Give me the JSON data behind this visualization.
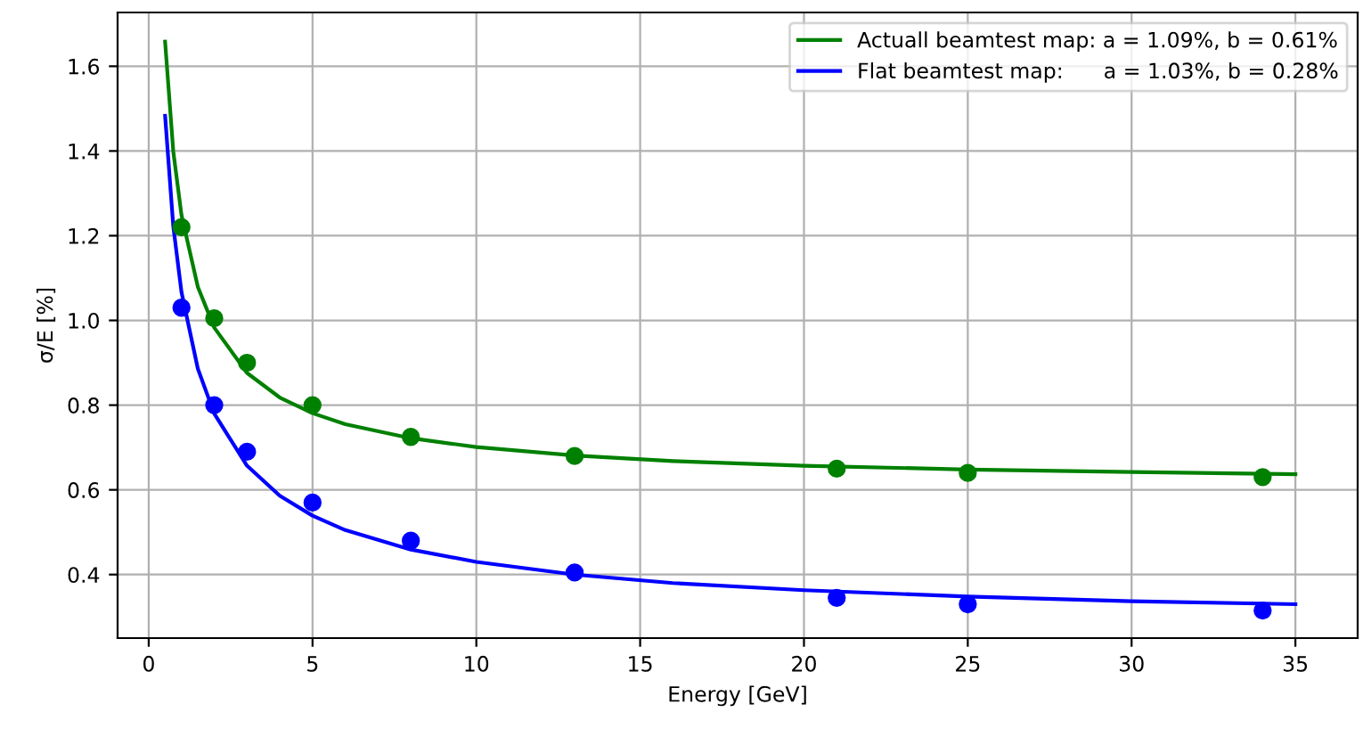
{
  "chart_data": {
    "type": "scatter",
    "xlabel": "Energy [GeV]",
    "ylabel": "σ/E [%]",
    "xlim": [
      -0.95,
      36.9
    ],
    "ylim": [
      0.25,
      1.727
    ],
    "xticks": [
      0,
      5,
      10,
      15,
      20,
      25,
      30,
      35
    ],
    "yticks": [
      0.4,
      0.6,
      0.8,
      {
        "value": 1,
        "label": "1.0"
      },
      1.2,
      1.4,
      1.6
    ],
    "grid": true,
    "legend": "top right",
    "series": [
      {
        "type": "line",
        "name": "Actuall beamtest map: a = 1.09%, b = 0.61%",
        "color": "#008000",
        "marker": "none",
        "line_style": "solid",
        "x": [
          0.5,
          0.75,
          1,
          1.5,
          2,
          3,
          4,
          5,
          6,
          8,
          10,
          13,
          16,
          20,
          25,
          30,
          35
        ],
        "values": [
          1.658,
          1.399,
          1.249,
          1.079,
          0.983,
          0.876,
          0.818,
          0.781,
          0.755,
          0.722,
          0.701,
          0.681,
          0.668,
          0.657,
          0.648,
          0.642,
          0.637
        ]
      },
      {
        "type": "line",
        "name": "Flat beamtest map:      a = 1.03%, b = 0.28%",
        "color": "#0000ff",
        "marker": "none",
        "line_style": "solid",
        "x": [
          0.5,
          0.75,
          1,
          1.5,
          2,
          3,
          4,
          5,
          6,
          8,
          10,
          13,
          16,
          20,
          25,
          30,
          35
        ],
        "values": [
          1.483,
          1.222,
          1.067,
          0.886,
          0.78,
          0.657,
          0.586,
          0.539,
          0.505,
          0.459,
          0.43,
          0.4,
          0.38,
          0.363,
          0.348,
          0.337,
          0.33
        ]
      },
      {
        "color": "#008000",
        "marker": "circle",
        "x": [
          1,
          2,
          3,
          5,
          8,
          13,
          21,
          25,
          34
        ],
        "values": [
          1.22,
          1.005,
          0.9,
          0.8,
          0.725,
          0.68,
          0.65,
          0.64,
          0.63
        ]
      },
      {
        "color": "#0000ff",
        "marker": "circle",
        "x": [
          1,
          2,
          3,
          5,
          8,
          13,
          21,
          25,
          34
        ],
        "values": [
          1.03,
          0.8,
          0.69,
          0.57,
          0.48,
          0.405,
          0.345,
          0.33,
          0.315
        ]
      }
    ]
  }
}
